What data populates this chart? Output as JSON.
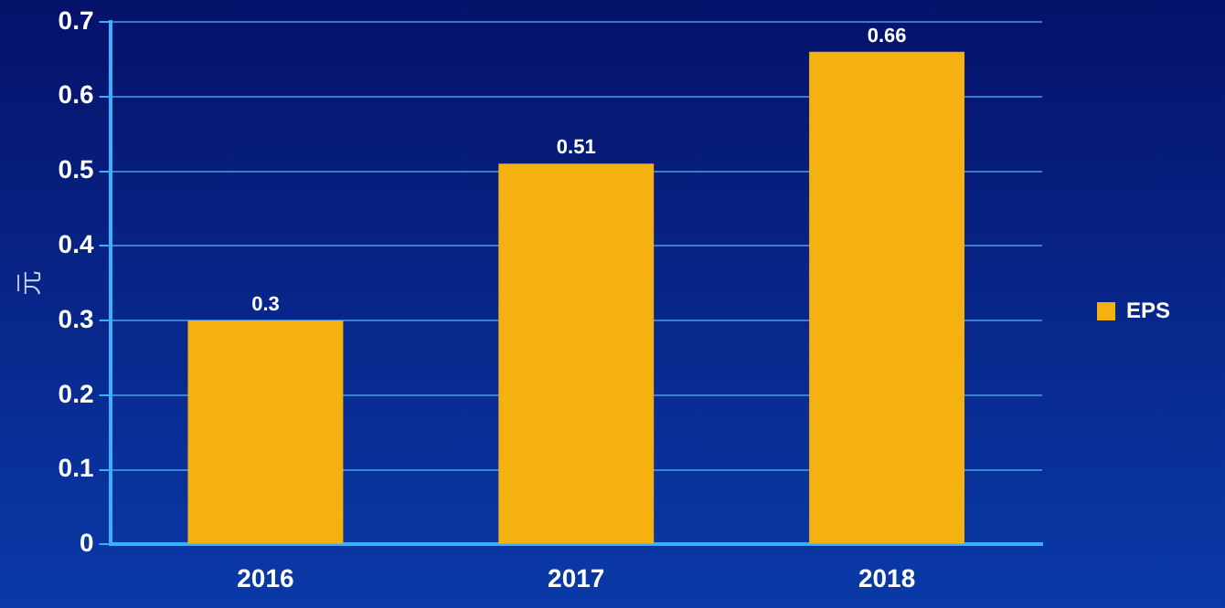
{
  "chart_data": {
    "type": "bar",
    "ylabel": "元",
    "categories": [
      "2016",
      "2017",
      "2018"
    ],
    "series": [
      {
        "name": "EPS",
        "color": "#f5b10f",
        "values": [
          0.3,
          0.51,
          0.66
        ]
      }
    ],
    "ylim": [
      0,
      0.7
    ],
    "yticks": [
      0,
      0.1,
      0.2,
      0.3,
      0.4,
      0.5,
      0.6,
      0.7
    ],
    "grid": "y",
    "legend": "right",
    "data_labels": true
  }
}
